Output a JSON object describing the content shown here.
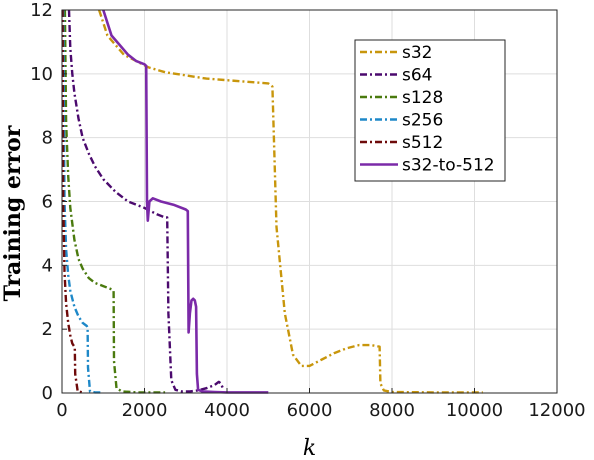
{
  "chart_data": {
    "type": "line",
    "title": "",
    "xlabel": "k",
    "ylabel": "Training error",
    "xlim": [
      0,
      12000
    ],
    "ylim": [
      0,
      12
    ],
    "xticks": [
      0,
      2000,
      4000,
      6000,
      8000,
      10000,
      12000
    ],
    "yticks": [
      0,
      2,
      4,
      6,
      8,
      10,
      12
    ],
    "xtick_labels": [
      "0",
      "2000",
      "4000",
      "6000",
      "8000",
      "10000",
      "12000"
    ],
    "ytick_labels": [
      "0",
      "2",
      "4",
      "6",
      "8",
      "10",
      "12"
    ],
    "grid": true,
    "legend_position": "top-right",
    "series": [
      {
        "name": "s32",
        "color": "#c8960c",
        "dash": "dashdot",
        "x": [
          900,
          1100,
          1300,
          1500,
          1800,
          2100,
          2500,
          3000,
          3500,
          4000,
          4500,
          5000,
          5050,
          5100,
          5200,
          5400,
          5600,
          5800,
          6000,
          6300,
          6600,
          6900,
          7200,
          7500,
          7700,
          7720,
          7800,
          8000,
          9000,
          10000,
          10200
        ],
        "y": [
          12,
          11.2,
          10.9,
          10.6,
          10.4,
          10.2,
          10.05,
          9.95,
          9.85,
          9.8,
          9.75,
          9.7,
          9.65,
          9.6,
          5.2,
          2.5,
          1.2,
          0.85,
          0.85,
          1.05,
          1.25,
          1.4,
          1.5,
          1.5,
          1.45,
          0.3,
          0.08,
          0.03,
          0.02,
          0.02,
          0.02
        ]
      },
      {
        "name": "s64",
        "color": "#4b0a6e",
        "dash": "dashdot",
        "x": [
          170,
          200,
          250,
          300,
          400,
          500,
          650,
          800,
          1000,
          1300,
          1600,
          2000,
          2300,
          2500,
          2550,
          2580,
          2650,
          2750,
          2900,
          3100,
          3300,
          3500,
          3700,
          3800,
          3850,
          3900
        ],
        "y": [
          12,
          10.8,
          10.0,
          9.4,
          8.6,
          8.0,
          7.5,
          7.1,
          6.7,
          6.3,
          6.0,
          5.8,
          5.6,
          5.5,
          5.5,
          2.5,
          0.4,
          0.1,
          0.05,
          0.05,
          0.08,
          0.15,
          0.25,
          0.35,
          0.3,
          0.15
        ]
      },
      {
        "name": "s128",
        "color": "#4a7a0e",
        "dash": "dashdot",
        "x": [
          70,
          100,
          150,
          200,
          300,
          400,
          500,
          650,
          800,
          1000,
          1200,
          1250,
          1260,
          1320,
          1450,
          1800,
          2200,
          2500
        ],
        "y": [
          12,
          8.5,
          6.8,
          5.8,
          4.8,
          4.2,
          3.9,
          3.6,
          3.45,
          3.35,
          3.25,
          3.2,
          1.0,
          0.15,
          0.05,
          0.02,
          0.02,
          0.02
        ]
      },
      {
        "name": "s256",
        "color": "#1e88c8",
        "dash": "dashdot",
        "x": [
          30,
          60,
          100,
          150,
          200,
          300,
          400,
          500,
          600,
          620,
          630,
          680,
          800,
          1000
        ],
        "y": [
          12,
          6.0,
          4.5,
          3.7,
          3.2,
          2.7,
          2.4,
          2.2,
          2.1,
          2.05,
          0.8,
          0.05,
          0.02,
          0.02
        ]
      },
      {
        "name": "s512",
        "color": "#6e0a0a",
        "dash": "dashdot",
        "x": [
          15,
          30,
          60,
          100,
          150,
          200,
          250,
          300,
          310,
          320,
          380,
          500
        ],
        "y": [
          12,
          6.0,
          3.8,
          2.8,
          2.2,
          1.8,
          1.55,
          1.45,
          1.4,
          0.6,
          0.05,
          0.02
        ]
      },
      {
        "name": "s32-to-512",
        "color": "#7b2aa8",
        "dash": "solid",
        "x": [
          1000,
          1200,
          1400,
          1600,
          1800,
          2000,
          2040,
          2060,
          2080,
          2120,
          2200,
          2400,
          2700,
          3000,
          3050,
          3070,
          3100,
          3140,
          3180,
          3220,
          3250,
          3270,
          3300,
          3400,
          3700,
          4000,
          4500,
          5000
        ],
        "y": [
          12,
          11.2,
          10.9,
          10.6,
          10.4,
          10.3,
          10.25,
          6.0,
          5.4,
          6.0,
          6.1,
          6.0,
          5.9,
          5.75,
          5.7,
          1.9,
          2.5,
          2.9,
          2.95,
          2.9,
          2.7,
          0.6,
          0.1,
          0.05,
          0.03,
          0.02,
          0.02,
          0.02
        ]
      }
    ]
  }
}
